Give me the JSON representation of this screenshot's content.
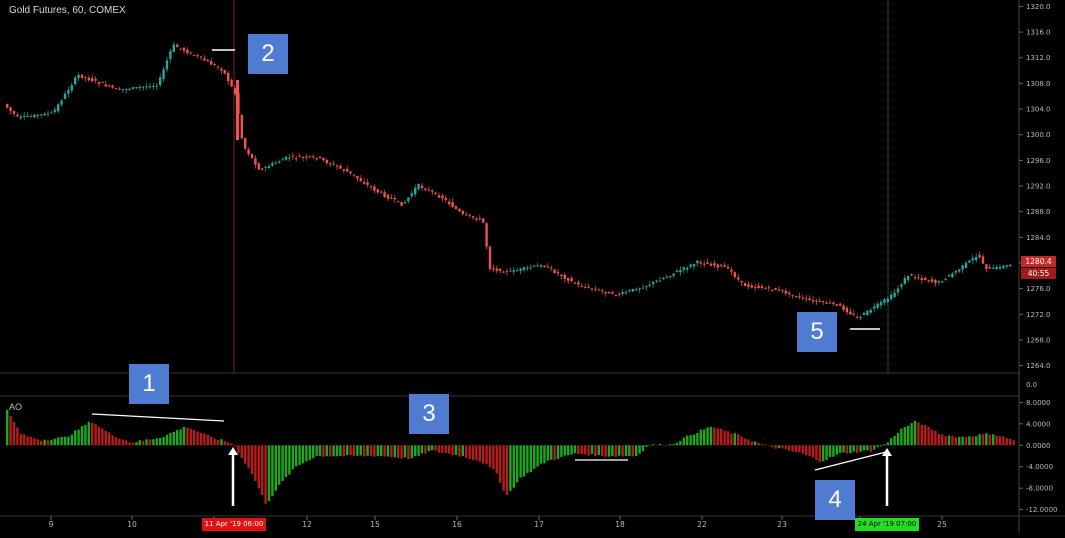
{
  "header": {
    "title": "Gold Futures, 60, COMEX"
  },
  "indicator": {
    "label": "AO"
  },
  "colors": {
    "up": "#26a69a",
    "down": "#ef5350",
    "ao_up": "#1ea81e",
    "ao_down": "#b71c1c",
    "red_line": "#8b1a1a",
    "green_line": "#1b8f1b",
    "grid": "#1a1a1a"
  },
  "price_axis": {
    "ticks": [
      "1320.0",
      "1316.0",
      "1312.0",
      "1308.0",
      "1304.0",
      "1300.0",
      "1296.0",
      "1292.0",
      "1288.0",
      "1284.0",
      "1280.0",
      "1276.0",
      "1272.0",
      "1268.0",
      "1264.0"
    ],
    "current_price": "1280.4",
    "countdown": "40:55"
  },
  "ao_axis": {
    "ticks": [
      "8.0000",
      "4.0000",
      "0.0000",
      "-4.0000",
      "-8.0000",
      "-12.0000"
    ],
    "zero_row": "0.0"
  },
  "time_axis": {
    "ticks": [
      "9",
      "10",
      "11",
      "12",
      "15",
      "16",
      "17",
      "18",
      "22",
      "23",
      "24",
      "25"
    ],
    "red_marker": "11 Apr '19   06:00",
    "green_marker": "24 Apr '19   07:00"
  },
  "annotations": {
    "badge_1": "1",
    "badge_2": "2",
    "badge_3": "3",
    "badge_4": "4",
    "badge_5": "5"
  },
  "chart_data": {
    "type": "candlestick",
    "title": "Gold Futures, 60, COMEX",
    "price_range": [
      1263,
      1321
    ],
    "price_path": [
      {
        "x": "9",
        "price": 1302
      },
      {
        "x": "10",
        "price": 1308
      },
      {
        "x": "11",
        "price": 1313
      },
      {
        "x": "12",
        "price": 1296
      },
      {
        "x": "15",
        "price": 1291
      },
      {
        "x": "16",
        "price": 1286
      },
      {
        "x": "17",
        "price": 1279
      },
      {
        "x": "18",
        "price": 1277
      },
      {
        "x": "22",
        "price": 1281
      },
      {
        "x": "23",
        "price": 1276
      },
      {
        "x": "24",
        "price": 1272
      },
      {
        "x": "25",
        "price": 1280
      }
    ],
    "last_price": 1280.4,
    "ao_range": [
      -13,
      9
    ],
    "ao_series": [
      {
        "x": "9",
        "value": 3
      },
      {
        "x": "10",
        "value": 2
      },
      {
        "x": "11",
        "value": 1
      },
      {
        "x": "12",
        "value": -6
      },
      {
        "x": "15",
        "value": -3
      },
      {
        "x": "16",
        "value": -2
      },
      {
        "x": "17",
        "value": -4
      },
      {
        "x": "18",
        "value": -3
      },
      {
        "x": "22",
        "value": 2
      },
      {
        "x": "23",
        "value": -2
      },
      {
        "x": "24",
        "value": -2
      },
      {
        "x": "25",
        "value": 2
      }
    ]
  }
}
